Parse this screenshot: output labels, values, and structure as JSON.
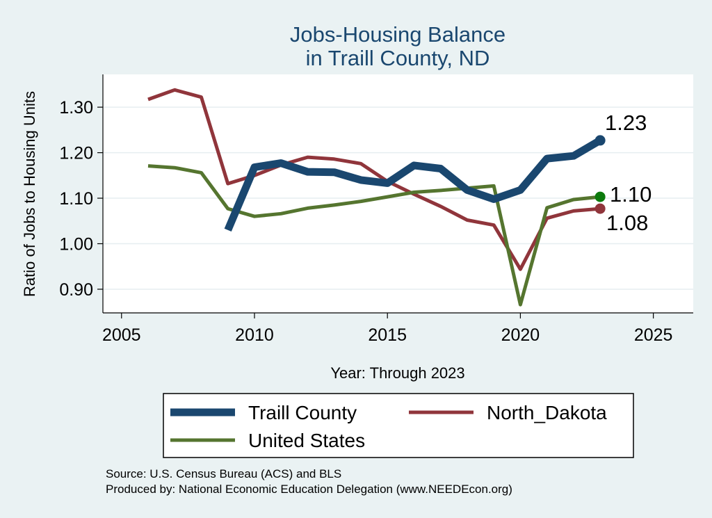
{
  "chart_data": {
    "type": "line",
    "title": [
      "Jobs-Housing Balance",
      "in Traill County, ND"
    ],
    "xlabel": "Year: Through 2023",
    "ylabel": "Ratio of Jobs to Housing Units",
    "xlim": [
      2004.3,
      2026.5
    ],
    "ylim": [
      0.848,
      1.372
    ],
    "x_ticks": [
      2005,
      2010,
      2015,
      2020,
      2025
    ],
    "x_tick_labels": [
      "2005",
      "2010",
      "2015",
      "2020",
      "2025"
    ],
    "y_ticks": [
      0.9,
      1.0,
      1.1,
      1.2,
      1.3
    ],
    "y_tick_labels": [
      "0.90",
      "1.00",
      "1.10",
      "1.20",
      "1.30"
    ],
    "grid": true,
    "legend_position": "bottom",
    "series": [
      {
        "name": "Traill County",
        "color": "#1a476f",
        "x": [
          2009,
          2010,
          2011,
          2012,
          2013,
          2014,
          2015,
          2016,
          2017,
          2018,
          2019,
          2020,
          2021,
          2022,
          2023
        ],
        "values": [
          1.03,
          1.168,
          1.177,
          1.158,
          1.157,
          1.14,
          1.133,
          1.172,
          1.165,
          1.118,
          1.098,
          1.118,
          1.187,
          1.193,
          1.227
        ],
        "end_label": "1.23"
      },
      {
        "name": "North_Dakota",
        "color": "#90353b",
        "x": [
          2006,
          2007,
          2008,
          2009,
          2010,
          2011,
          2012,
          2013,
          2014,
          2015,
          2016,
          2017,
          2018,
          2019,
          2020,
          2021,
          2022,
          2023
        ],
        "values": [
          1.317,
          1.338,
          1.322,
          1.132,
          1.15,
          1.173,
          1.19,
          1.186,
          1.176,
          1.137,
          1.109,
          1.082,
          1.052,
          1.041,
          0.944,
          1.056,
          1.072,
          1.077
        ],
        "end_label": "1.08"
      },
      {
        "name": "United States",
        "color": "#55752f",
        "x": [
          2006,
          2007,
          2008,
          2009,
          2010,
          2011,
          2012,
          2013,
          2014,
          2015,
          2016,
          2017,
          2018,
          2019,
          2020,
          2021,
          2022,
          2023
        ],
        "values": [
          1.171,
          1.167,
          1.156,
          1.077,
          1.06,
          1.066,
          1.078,
          1.085,
          1.093,
          1.103,
          1.113,
          1.117,
          1.122,
          1.127,
          0.866,
          1.079,
          1.097,
          1.103
        ],
        "end_label": "1.10",
        "end_marker_color": "#0c7a0c"
      }
    ],
    "legend": [
      {
        "label": "Traill County",
        "color": "#1a476f"
      },
      {
        "label": "North_Dakota",
        "color": "#90353b"
      },
      {
        "label": "United States",
        "color": "#55752f"
      }
    ],
    "notes": [
      "Source: U.S. Census Bureau (ACS) and BLS",
      "Produced by: National Economic Education Delegation (www.NEEDEcon.org)"
    ]
  }
}
